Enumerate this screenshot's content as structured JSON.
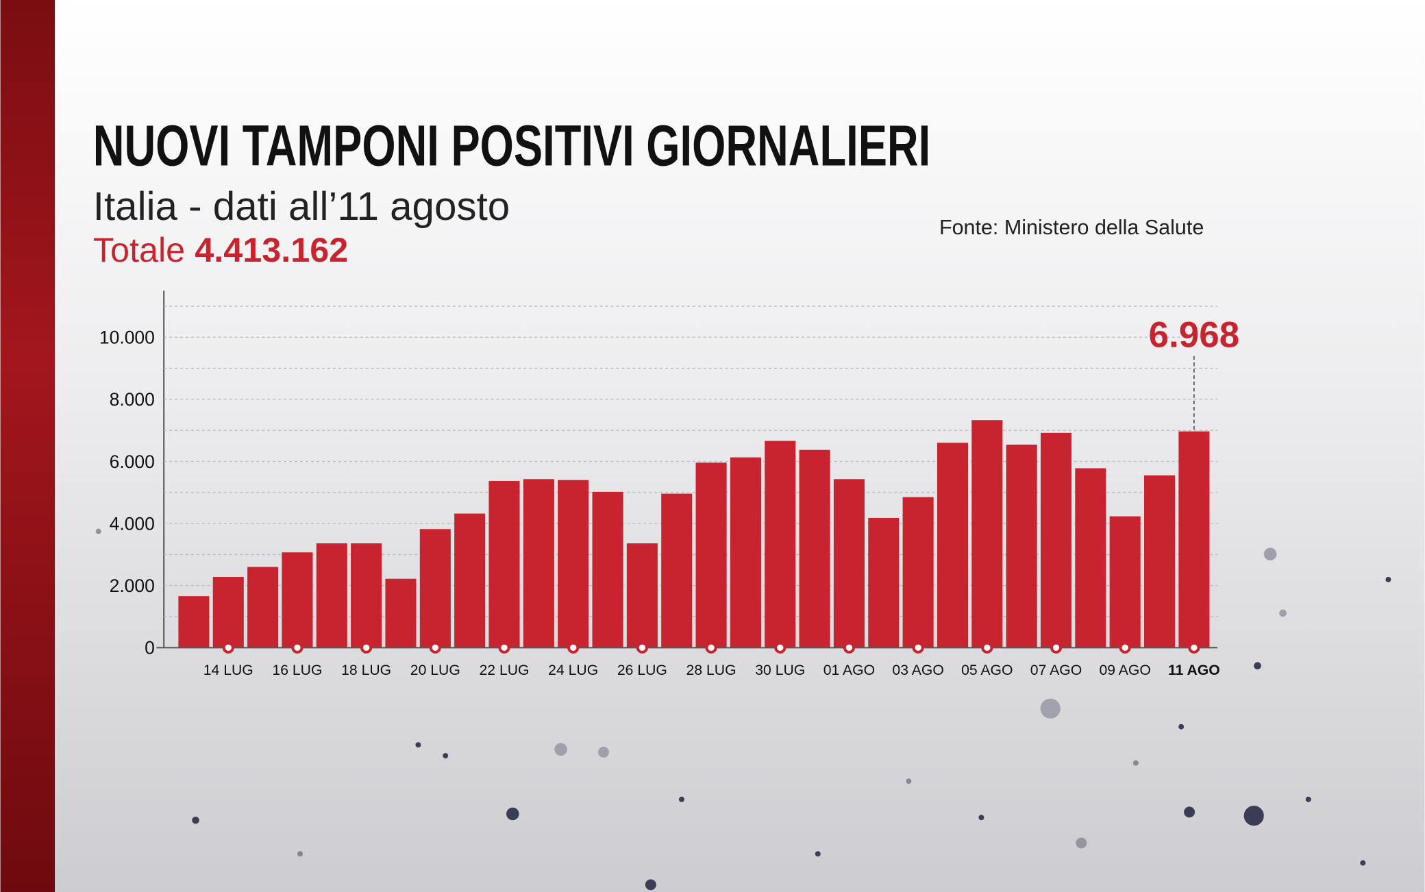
{
  "chart_data": {
    "type": "bar",
    "title": "NUOVI TAMPONI POSITIVI GIORNALIERI",
    "subtitle": "Italia - dati all’11 agosto",
    "total_label": "Totale",
    "total_value": "4.413.162",
    "source": "Fonte: Ministero della Salute",
    "categories": [
      null,
      "14 LUG",
      null,
      "16 LUG",
      null,
      "18 LUG",
      null,
      "20 LUG",
      null,
      "22 LUG",
      null,
      "24 LUG",
      null,
      "26 LUG",
      null,
      "28 LUG",
      null,
      "30 LUG",
      null,
      "01 AGO",
      null,
      "03 AGO",
      null,
      "05 AGO",
      null,
      "07 AGO",
      null,
      "09 AGO",
      null,
      "11 AGO"
    ],
    "values": [
      1660,
      2280,
      2600,
      3070,
      3360,
      3360,
      2220,
      3820,
      4320,
      5370,
      5430,
      5400,
      5020,
      3360,
      4960,
      5960,
      6130,
      6660,
      6370,
      5430,
      4180,
      4850,
      6600,
      7330,
      6540,
      6920,
      5780,
      4230,
      5550,
      6968
    ],
    "value_labels": [
      null,
      null,
      null,
      null,
      null,
      null,
      null,
      null,
      null,
      null,
      null,
      null,
      null,
      null,
      null,
      null,
      null,
      null,
      null,
      null,
      null,
      null,
      null,
      null,
      null,
      null,
      null,
      null,
      null,
      "6.968"
    ],
    "color": "#c8242f",
    "ylim": [
      0,
      11500
    ],
    "yticks": [
      0,
      {
        "value": 2000,
        "label": "2.000"
      },
      {
        "value": 4000,
        "label": "4.000"
      },
      {
        "value": 6000,
        "label": "6.000"
      },
      {
        "value": 8000,
        "label": "8.000"
      },
      {
        "value": 10000,
        "label": "10.000"
      }
    ],
    "minor_yticks": [
      1000,
      3000,
      5000,
      7000,
      9000,
      11000
    ],
    "grid": true
  }
}
